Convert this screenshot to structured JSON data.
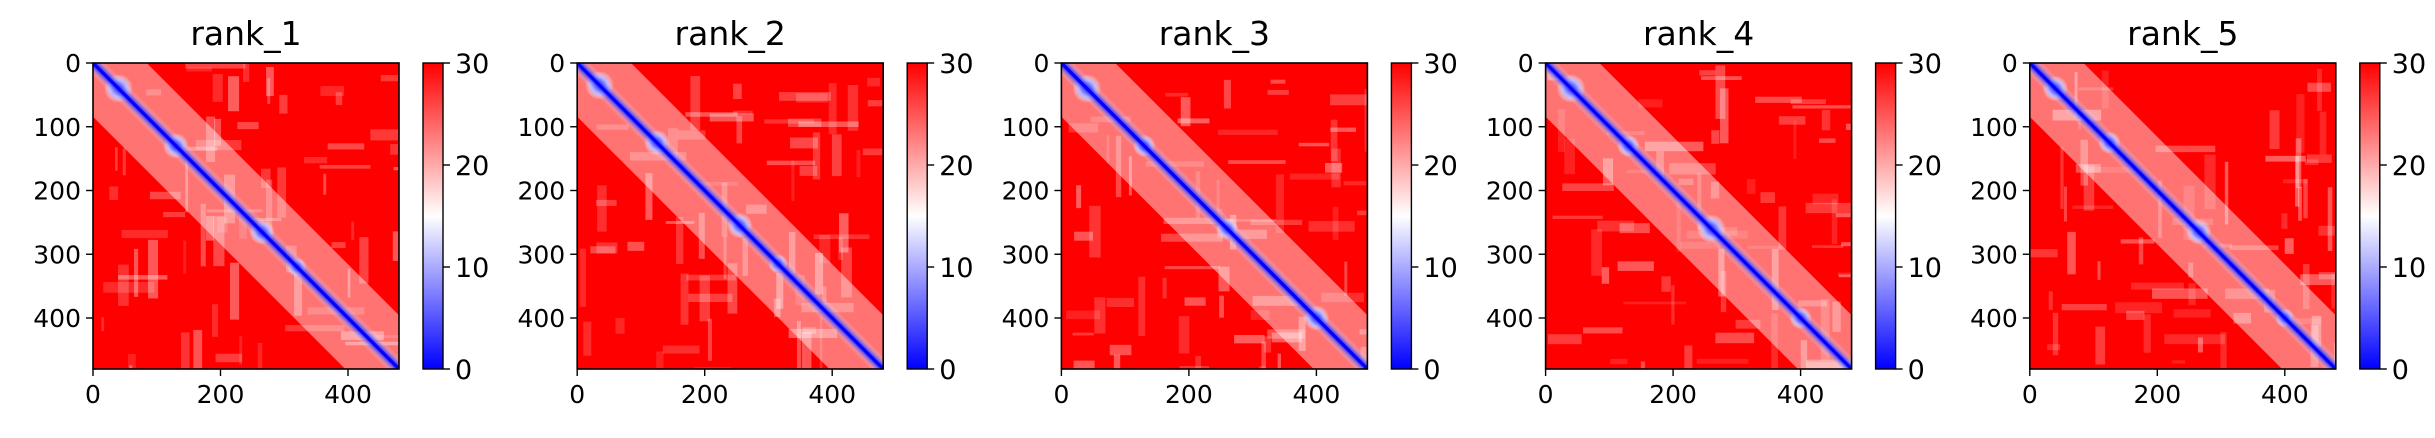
{
  "chart_data": [
    {
      "type": "heatmap",
      "title": "rank_1",
      "xlim": [
        0,
        480
      ],
      "ylim": [
        480,
        0
      ],
      "xticks": [
        0,
        200,
        400
      ],
      "yticks": [
        0,
        100,
        200,
        300,
        400
      ],
      "colorbar": {
        "min": 0,
        "max": 30,
        "ticks": [
          0,
          10,
          20,
          30
        ],
        "colormap": "bwr"
      },
      "diagonal_domains": [
        {
          "center": 40,
          "size": 45
        },
        {
          "center": 130,
          "size": 40
        },
        {
          "center": 265,
          "size": 40
        },
        {
          "center": 320,
          "size": 30
        }
      ],
      "background_value": 30,
      "near_diagonal_value": 0
    },
    {
      "type": "heatmap",
      "title": "rank_2",
      "xlim": [
        0,
        480
      ],
      "ylim": [
        480,
        0
      ],
      "xticks": [
        0,
        200,
        400
      ],
      "yticks": [
        0,
        100,
        200,
        300,
        400
      ],
      "colorbar": {
        "min": 0,
        "max": 30,
        "ticks": [
          0,
          10,
          20,
          30
        ],
        "colormap": "bwr"
      },
      "diagonal_domains": [
        {
          "center": 35,
          "size": 45
        },
        {
          "center": 125,
          "size": 40
        },
        {
          "center": 255,
          "size": 40
        },
        {
          "center": 315,
          "size": 30
        }
      ],
      "background_value": 30,
      "near_diagonal_value": 0
    },
    {
      "type": "heatmap",
      "title": "rank_3",
      "xlim": [
        0,
        480
      ],
      "ylim": [
        480,
        0
      ],
      "xticks": [
        0,
        200,
        400
      ],
      "yticks": [
        0,
        100,
        200,
        300,
        400
      ],
      "colorbar": {
        "min": 0,
        "max": 30,
        "ticks": [
          0,
          10,
          20,
          30
        ],
        "colormap": "bwr"
      },
      "diagonal_domains": [
        {
          "center": 40,
          "size": 45
        },
        {
          "center": 130,
          "size": 35
        },
        {
          "center": 260,
          "size": 35
        },
        {
          "center": 400,
          "size": 40
        }
      ],
      "background_value": 30,
      "near_diagonal_value": 0
    },
    {
      "type": "heatmap",
      "title": "rank_4",
      "xlim": [
        0,
        480
      ],
      "ylim": [
        480,
        0
      ],
      "xticks": [
        0,
        200,
        400
      ],
      "yticks": [
        0,
        100,
        200,
        300,
        400
      ],
      "colorbar": {
        "min": 0,
        "max": 30,
        "ticks": [
          0,
          10,
          20,
          30
        ],
        "colormap": "bwr"
      },
      "diagonal_domains": [
        {
          "center": 40,
          "size": 45
        },
        {
          "center": 130,
          "size": 35
        },
        {
          "center": 260,
          "size": 45
        },
        {
          "center": 400,
          "size": 35
        }
      ],
      "background_value": 30,
      "near_diagonal_value": 0
    },
    {
      "type": "heatmap",
      "title": "rank_5",
      "xlim": [
        0,
        480
      ],
      "ylim": [
        480,
        0
      ],
      "xticks": [
        0,
        200,
        400
      ],
      "yticks": [
        0,
        100,
        200,
        300,
        400
      ],
      "colorbar": {
        "min": 0,
        "max": 30,
        "ticks": [
          0,
          10,
          20,
          30
        ],
        "colormap": "bwr"
      },
      "diagonal_domains": [
        {
          "center": 40,
          "size": 40
        },
        {
          "center": 125,
          "size": 35
        },
        {
          "center": 265,
          "size": 40
        },
        {
          "center": 400,
          "size": 30
        }
      ],
      "background_value": 30,
      "near_diagonal_value": 0
    }
  ]
}
